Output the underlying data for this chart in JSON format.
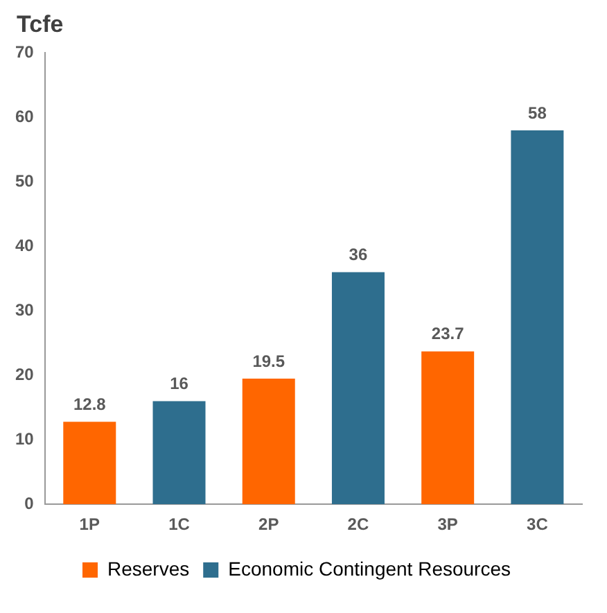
{
  "chart_data": {
    "type": "bar",
    "ylabel": "Tcfe",
    "categories": [
      "1P",
      "1C",
      "2P",
      "2C",
      "3P",
      "3C"
    ],
    "series": [
      {
        "name": "Reserves",
        "color": "#ff6600",
        "values": [
          12.8,
          null,
          19.5,
          null,
          23.7,
          null
        ]
      },
      {
        "name": "Economic Contingent Resources",
        "color": "#2e6e8e",
        "values": [
          null,
          16,
          null,
          36,
          null,
          58
        ]
      }
    ],
    "ylim": [
      0,
      70
    ],
    "yticks": [
      0,
      10,
      20,
      30,
      40,
      50,
      60,
      70
    ],
    "grid": false,
    "legend": "bottom",
    "data_labels": true
  }
}
